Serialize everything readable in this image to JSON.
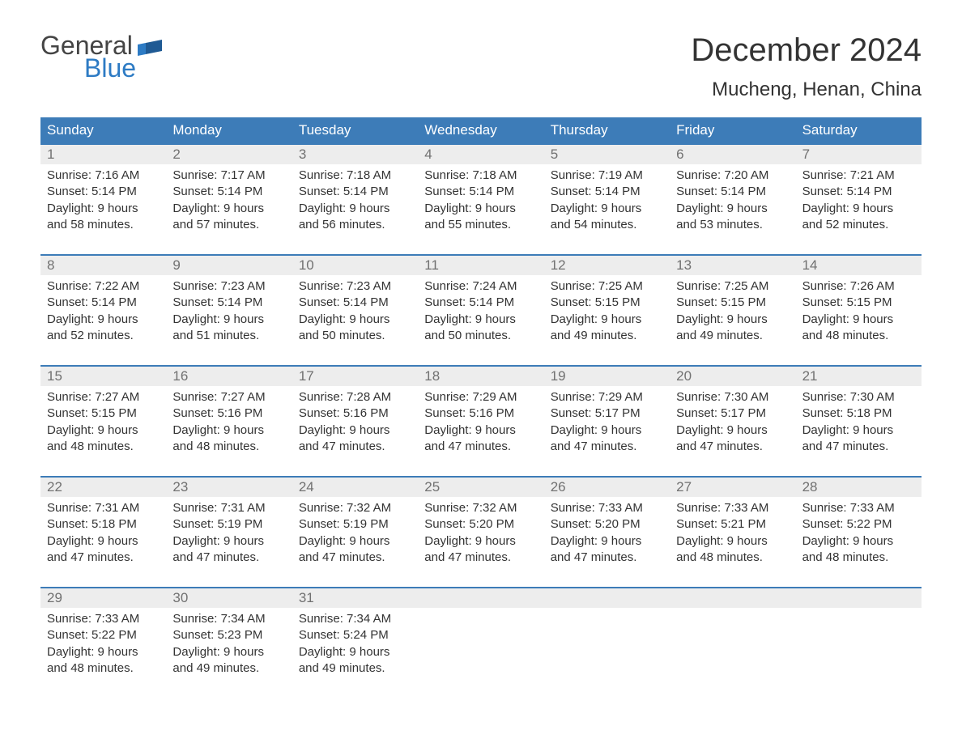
{
  "logo": {
    "general": "General",
    "blue": "Blue"
  },
  "title": "December 2024",
  "location": "Mucheng, Henan, China",
  "colors": {
    "header_bg": "#3d7cb8",
    "header_text": "#ffffff",
    "daynum_bg": "#ededed",
    "daynum_text": "#717171",
    "body_text": "#333333",
    "logo_blue": "#2d7bc4",
    "week_border": "#3d7cb8"
  },
  "dayHeaders": [
    "Sunday",
    "Monday",
    "Tuesday",
    "Wednesday",
    "Thursday",
    "Friday",
    "Saturday"
  ],
  "weeks": [
    [
      {
        "n": "1",
        "sr": "Sunrise: 7:16 AM",
        "ss": "Sunset: 5:14 PM",
        "d1": "Daylight: 9 hours",
        "d2": "and 58 minutes."
      },
      {
        "n": "2",
        "sr": "Sunrise: 7:17 AM",
        "ss": "Sunset: 5:14 PM",
        "d1": "Daylight: 9 hours",
        "d2": "and 57 minutes."
      },
      {
        "n": "3",
        "sr": "Sunrise: 7:18 AM",
        "ss": "Sunset: 5:14 PM",
        "d1": "Daylight: 9 hours",
        "d2": "and 56 minutes."
      },
      {
        "n": "4",
        "sr": "Sunrise: 7:18 AM",
        "ss": "Sunset: 5:14 PM",
        "d1": "Daylight: 9 hours",
        "d2": "and 55 minutes."
      },
      {
        "n": "5",
        "sr": "Sunrise: 7:19 AM",
        "ss": "Sunset: 5:14 PM",
        "d1": "Daylight: 9 hours",
        "d2": "and 54 minutes."
      },
      {
        "n": "6",
        "sr": "Sunrise: 7:20 AM",
        "ss": "Sunset: 5:14 PM",
        "d1": "Daylight: 9 hours",
        "d2": "and 53 minutes."
      },
      {
        "n": "7",
        "sr": "Sunrise: 7:21 AM",
        "ss": "Sunset: 5:14 PM",
        "d1": "Daylight: 9 hours",
        "d2": "and 52 minutes."
      }
    ],
    [
      {
        "n": "8",
        "sr": "Sunrise: 7:22 AM",
        "ss": "Sunset: 5:14 PM",
        "d1": "Daylight: 9 hours",
        "d2": "and 52 minutes."
      },
      {
        "n": "9",
        "sr": "Sunrise: 7:23 AM",
        "ss": "Sunset: 5:14 PM",
        "d1": "Daylight: 9 hours",
        "d2": "and 51 minutes."
      },
      {
        "n": "10",
        "sr": "Sunrise: 7:23 AM",
        "ss": "Sunset: 5:14 PM",
        "d1": "Daylight: 9 hours",
        "d2": "and 50 minutes."
      },
      {
        "n": "11",
        "sr": "Sunrise: 7:24 AM",
        "ss": "Sunset: 5:14 PM",
        "d1": "Daylight: 9 hours",
        "d2": "and 50 minutes."
      },
      {
        "n": "12",
        "sr": "Sunrise: 7:25 AM",
        "ss": "Sunset: 5:15 PM",
        "d1": "Daylight: 9 hours",
        "d2": "and 49 minutes."
      },
      {
        "n": "13",
        "sr": "Sunrise: 7:25 AM",
        "ss": "Sunset: 5:15 PM",
        "d1": "Daylight: 9 hours",
        "d2": "and 49 minutes."
      },
      {
        "n": "14",
        "sr": "Sunrise: 7:26 AM",
        "ss": "Sunset: 5:15 PM",
        "d1": "Daylight: 9 hours",
        "d2": "and 48 minutes."
      }
    ],
    [
      {
        "n": "15",
        "sr": "Sunrise: 7:27 AM",
        "ss": "Sunset: 5:15 PM",
        "d1": "Daylight: 9 hours",
        "d2": "and 48 minutes."
      },
      {
        "n": "16",
        "sr": "Sunrise: 7:27 AM",
        "ss": "Sunset: 5:16 PM",
        "d1": "Daylight: 9 hours",
        "d2": "and 48 minutes."
      },
      {
        "n": "17",
        "sr": "Sunrise: 7:28 AM",
        "ss": "Sunset: 5:16 PM",
        "d1": "Daylight: 9 hours",
        "d2": "and 47 minutes."
      },
      {
        "n": "18",
        "sr": "Sunrise: 7:29 AM",
        "ss": "Sunset: 5:16 PM",
        "d1": "Daylight: 9 hours",
        "d2": "and 47 minutes."
      },
      {
        "n": "19",
        "sr": "Sunrise: 7:29 AM",
        "ss": "Sunset: 5:17 PM",
        "d1": "Daylight: 9 hours",
        "d2": "and 47 minutes."
      },
      {
        "n": "20",
        "sr": "Sunrise: 7:30 AM",
        "ss": "Sunset: 5:17 PM",
        "d1": "Daylight: 9 hours",
        "d2": "and 47 minutes."
      },
      {
        "n": "21",
        "sr": "Sunrise: 7:30 AM",
        "ss": "Sunset: 5:18 PM",
        "d1": "Daylight: 9 hours",
        "d2": "and 47 minutes."
      }
    ],
    [
      {
        "n": "22",
        "sr": "Sunrise: 7:31 AM",
        "ss": "Sunset: 5:18 PM",
        "d1": "Daylight: 9 hours",
        "d2": "and 47 minutes."
      },
      {
        "n": "23",
        "sr": "Sunrise: 7:31 AM",
        "ss": "Sunset: 5:19 PM",
        "d1": "Daylight: 9 hours",
        "d2": "and 47 minutes."
      },
      {
        "n": "24",
        "sr": "Sunrise: 7:32 AM",
        "ss": "Sunset: 5:19 PM",
        "d1": "Daylight: 9 hours",
        "d2": "and 47 minutes."
      },
      {
        "n": "25",
        "sr": "Sunrise: 7:32 AM",
        "ss": "Sunset: 5:20 PM",
        "d1": "Daylight: 9 hours",
        "d2": "and 47 minutes."
      },
      {
        "n": "26",
        "sr": "Sunrise: 7:33 AM",
        "ss": "Sunset: 5:20 PM",
        "d1": "Daylight: 9 hours",
        "d2": "and 47 minutes."
      },
      {
        "n": "27",
        "sr": "Sunrise: 7:33 AM",
        "ss": "Sunset: 5:21 PM",
        "d1": "Daylight: 9 hours",
        "d2": "and 48 minutes."
      },
      {
        "n": "28",
        "sr": "Sunrise: 7:33 AM",
        "ss": "Sunset: 5:22 PM",
        "d1": "Daylight: 9 hours",
        "d2": "and 48 minutes."
      }
    ],
    [
      {
        "n": "29",
        "sr": "Sunrise: 7:33 AM",
        "ss": "Sunset: 5:22 PM",
        "d1": "Daylight: 9 hours",
        "d2": "and 48 minutes."
      },
      {
        "n": "30",
        "sr": "Sunrise: 7:34 AM",
        "ss": "Sunset: 5:23 PM",
        "d1": "Daylight: 9 hours",
        "d2": "and 49 minutes."
      },
      {
        "n": "31",
        "sr": "Sunrise: 7:34 AM",
        "ss": "Sunset: 5:24 PM",
        "d1": "Daylight: 9 hours",
        "d2": "and 49 minutes."
      },
      {
        "empty": true
      },
      {
        "empty": true
      },
      {
        "empty": true
      },
      {
        "empty": true
      }
    ]
  ]
}
